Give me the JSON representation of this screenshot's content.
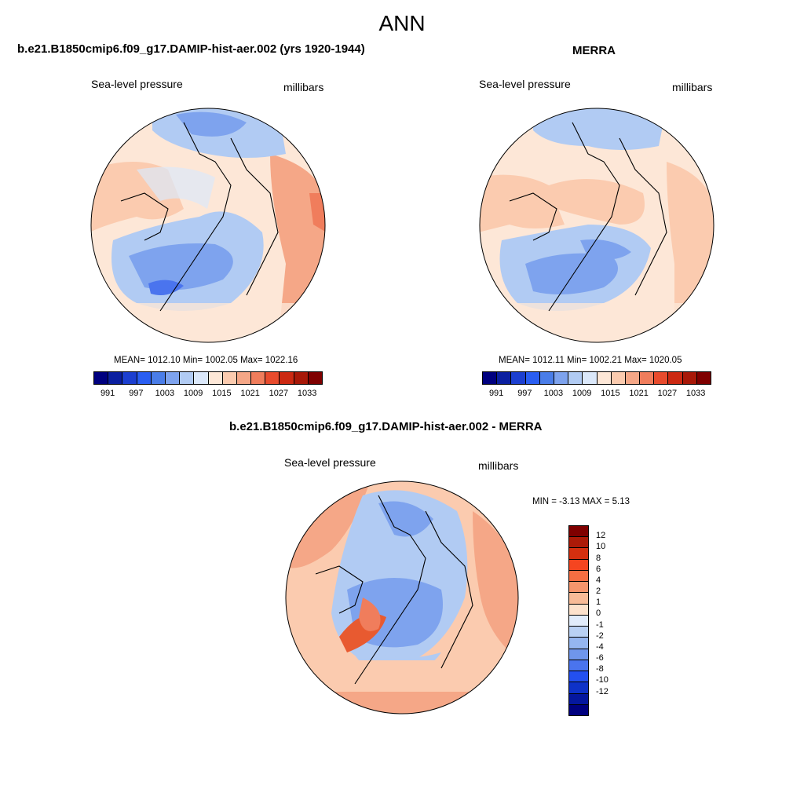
{
  "figure_title": "ANN",
  "panels": [
    {
      "title": "b.e21.B1850cmip6.f09_g17.DAMIP-hist-aer.002 (yrs 1920-1944)",
      "left_label": "Sea-level pressure",
      "right_label": "millibars",
      "stats": "MEAN= 1012.10  Min= 1002.05  Max= 1022.16"
    },
    {
      "title": "MERRA",
      "left_label": "Sea-level pressure",
      "right_label": "millibars",
      "stats": "MEAN= 1012.11  Min= 1002.21  Max= 1020.05"
    },
    {
      "title": "b.e21.B1850cmip6.f09_g17.DAMIP-hist-aer.002 - MERRA",
      "left_label": "Sea-level pressure",
      "right_label": "millibars",
      "stats": "MIN =  -3.13 MAX =   5.13"
    }
  ],
  "abs_colorbar": {
    "colors": [
      "#00007f",
      "#0b1fa0",
      "#1c3fd0",
      "#2a5ef2",
      "#4a7de8",
      "#7ea3ee",
      "#b1cbf3",
      "#dbe8fa",
      "#fde7d7",
      "#fbcbaf",
      "#f5a787",
      "#f07d5c",
      "#e84b2d",
      "#cc2912",
      "#a81808",
      "#7f0000"
    ],
    "labels": [
      "991",
      "997",
      "1003",
      "1009",
      "1015",
      "1021",
      "1027",
      "1033"
    ]
  },
  "diff_colorbar": {
    "colors": [
      "#7f0000",
      "#ac1a08",
      "#d42f0f",
      "#f54520",
      "#f56e42",
      "#f5956c",
      "#f8bb97",
      "#fde2cc",
      "#e1ecfb",
      "#b9d1f4",
      "#95b6f0",
      "#6f96ec",
      "#4a74ee",
      "#2350f0",
      "#0e32c8",
      "#05179e",
      "#00007f"
    ],
    "labels": [
      "12",
      "10",
      "8",
      "6",
      "4",
      "2",
      "1",
      "0",
      "-1",
      "-2",
      "-4",
      "-6",
      "-8",
      "-10",
      "-12"
    ]
  },
  "map_colors": {
    "blue_deep": "#4a74ee",
    "blue_mid": "#7ea3ee",
    "blue_light": "#b1cbf3",
    "blue_pale": "#dbe8fa",
    "peach_pale": "#fde7d7",
    "peach": "#fbcbaf",
    "salmon": "#f5a787",
    "orange": "#f07d5c",
    "diff_red": "#e85a30"
  }
}
